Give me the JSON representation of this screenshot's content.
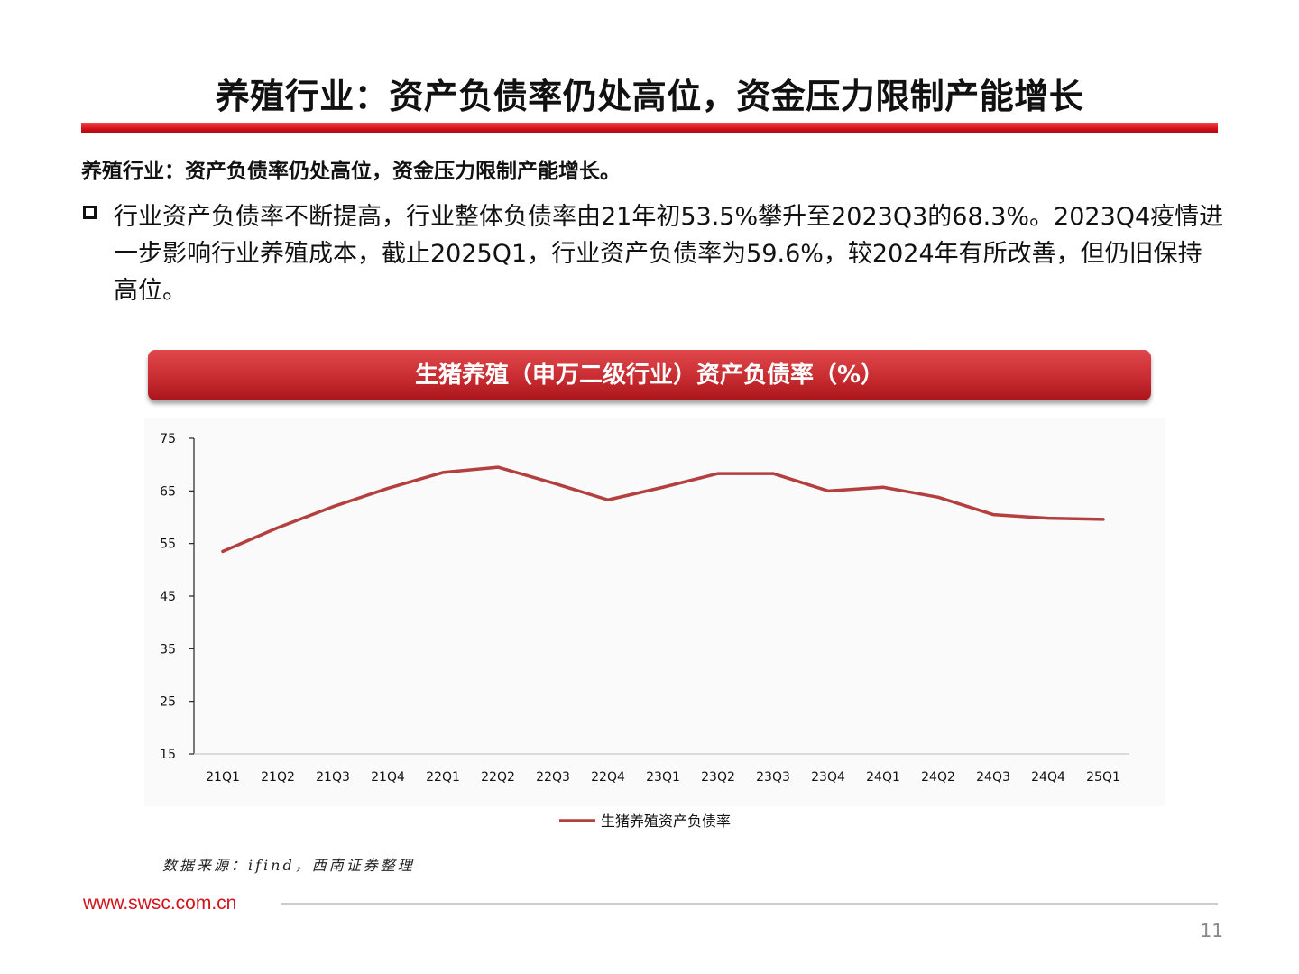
{
  "slide": {
    "title": "养殖行业：资产负债率仍处高位，资金压力限制产能增长",
    "subtitle": "养殖行业：资产负债率仍处高位，资金压力限制产能增长。",
    "bullet": "行业资产负债率不断提高，行业整体负债率由21年初53.5%攀升至2023Q3的68.3%。2023Q4疫情进一步影响行业养殖成本，截止2025Q1，行业资产负债率为59.6%，较2024年有所改善，但仍旧保持高位。",
    "chart_header": "生猪养殖（申万二级行业）资产负债率（%）",
    "source": "数据来源：ifind，西南证券整理",
    "footer_url": "www.swsc.com.cn",
    "page_number": "11"
  },
  "chart_data": {
    "type": "line",
    "categories": [
      "21Q1",
      "21Q2",
      "21Q3",
      "21Q4",
      "22Q1",
      "22Q2",
      "22Q3",
      "22Q4",
      "23Q1",
      "23Q2",
      "23Q3",
      "23Q4",
      "24Q1",
      "24Q2",
      "24Q3",
      "24Q4",
      "25Q1"
    ],
    "series": [
      {
        "name": "生猪养殖资产负债率",
        "values": [
          53.5,
          58.0,
          62.0,
          65.5,
          68.5,
          69.5,
          66.5,
          63.3,
          65.7,
          68.3,
          68.3,
          65.0,
          65.7,
          63.8,
          60.5,
          59.8,
          59.6
        ],
        "color": "#b3403f"
      }
    ],
    "yticks": [
      15,
      25,
      35,
      45,
      55,
      65,
      75
    ],
    "ylim": [
      15,
      75
    ],
    "grid": false,
    "legend_position": "bottom"
  }
}
